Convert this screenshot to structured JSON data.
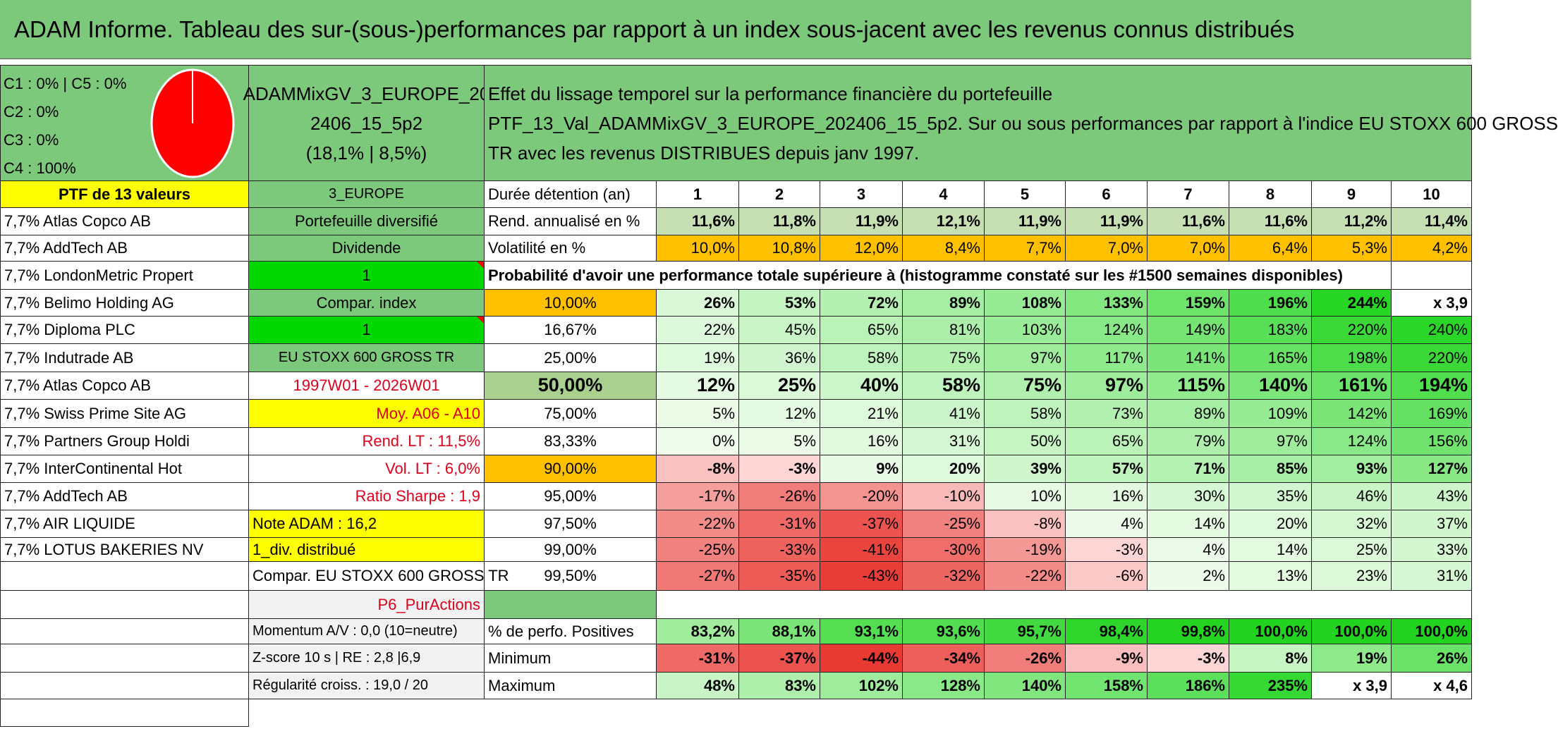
{
  "title": "ADAM Informe. Tableau des sur-(sous-)performances par rapport à un index sous-jacent avec les revenus connus distribués",
  "pie": {
    "lines": [
      "C1 : 0% | C5 : 0%",
      "C2 : 0%",
      "C3 : 0%",
      "C4 : 100%"
    ],
    "color": "#ff0000"
  },
  "portfolio": {
    "name_line1": "ADAMMixGV_3_EUROPE_20",
    "name_line2": "2406_15_5p2",
    "name_line3": "(18,1% | 8,5%)"
  },
  "effect": {
    "line1": "Effet du lissage temporel sur la performance financière du portefeuille",
    "line2": "PTF_13_Val_ADAMMixGV_3_EUROPE_202406_15_5p2. Sur ou sous performances par rapport à l'indice EU STOXX 600 GROSS",
    "line3": "TR avec les revenus DISTRIBUES depuis janv 1997."
  },
  "ptf_label": "PTF de 13 valeurs",
  "holdings": [
    "7,7% Atlas Copco AB",
    "7,7% AddTech AB",
    "7,7% LondonMetric Propert",
    "7,7% Belimo Holding AG",
    "7,7% Diploma PLC",
    "7,7% Indutrade AB",
    "7,7% Atlas Copco AB",
    "7,7% Swiss Prime Site AG",
    "7,7% Partners Group Holdi",
    "7,7% InterContinental Hot",
    "7,7% AddTech AB",
    "7,7% AIR LIQUIDE",
    "7,7% LOTUS BAKERIES NV"
  ],
  "info": {
    "region": "3_EUROPE",
    "diversified": "Portefeuille diversifié",
    "dividend": "Dividende",
    "dividend_value": "1",
    "compar_index": "Compar. index",
    "compar_value": "1",
    "index_name": "EU STOXX 600 GROSS TR",
    "period": "1997W01 - 2026W01",
    "moy": "Moy. A06 - A10",
    "rend_lt": "Rend. LT : 11,5%",
    "vol_lt": "Vol. LT : 6,0%",
    "sharpe": "Ratio Sharpe : 1,9",
    "note": "Note ADAM : 16,2",
    "div_distrib": "1_div. distribué",
    "compar_full": "Compar. EU STOXX 600 GROSS TR",
    "strategy": "P6_PurActions",
    "momentum": "Momentum A/V : 0,0 (10=neutre)",
    "zscore": "Z-score 10 s | RE : 2,8 |6,9",
    "regularite": "Régularité croiss. : 19,0 / 20"
  },
  "table": {
    "duration_label": "Durée détention (an)",
    "years": [
      "1",
      "2",
      "3",
      "4",
      "5",
      "6",
      "7",
      "8",
      "9",
      "10"
    ],
    "rend_label": "Rend. annualisé en %",
    "rend": [
      "11,6%",
      "11,8%",
      "11,9%",
      "12,1%",
      "11,9%",
      "11,9%",
      "11,6%",
      "11,6%",
      "11,2%",
      "11,4%"
    ],
    "vol_label": "Volatilité en %",
    "vol": [
      "10,0%",
      "10,8%",
      "12,0%",
      "8,4%",
      "7,7%",
      "7,0%",
      "7,0%",
      "6,4%",
      "5,3%",
      "4,2%"
    ],
    "prob_label": "Probabilité d'avoir une performance totale supérieure à (histogramme constaté sur les #1500 semaines disponibles)",
    "percentiles": [
      {
        "p": "10,00%",
        "vals": [
          "26%",
          "53%",
          "72%",
          "89%",
          "108%",
          "133%",
          "159%",
          "196%",
          "244%",
          "x 3,9"
        ]
      },
      {
        "p": "16,67%",
        "vals": [
          "22%",
          "45%",
          "65%",
          "81%",
          "103%",
          "124%",
          "149%",
          "183%",
          "220%",
          "240%"
        ]
      },
      {
        "p": "25,00%",
        "vals": [
          "19%",
          "36%",
          "58%",
          "75%",
          "97%",
          "117%",
          "141%",
          "165%",
          "198%",
          "220%"
        ]
      },
      {
        "p": "50,00%",
        "vals": [
          "12%",
          "25%",
          "40%",
          "58%",
          "75%",
          "97%",
          "115%",
          "140%",
          "161%",
          "194%"
        ]
      },
      {
        "p": "75,00%",
        "vals": [
          "5%",
          "12%",
          "21%",
          "41%",
          "58%",
          "73%",
          "89%",
          "109%",
          "142%",
          "169%"
        ]
      },
      {
        "p": "83,33%",
        "vals": [
          "0%",
          "5%",
          "16%",
          "31%",
          "50%",
          "65%",
          "79%",
          "97%",
          "124%",
          "156%"
        ]
      },
      {
        "p": "90,00%",
        "vals": [
          "-8%",
          "-3%",
          "9%",
          "20%",
          "39%",
          "57%",
          "71%",
          "85%",
          "93%",
          "127%"
        ]
      },
      {
        "p": "95,00%",
        "vals": [
          "-17%",
          "-26%",
          "-20%",
          "-10%",
          "10%",
          "16%",
          "30%",
          "35%",
          "46%",
          "43%"
        ]
      },
      {
        "p": "97,50%",
        "vals": [
          "-22%",
          "-31%",
          "-37%",
          "-25%",
          "-8%",
          "4%",
          "14%",
          "20%",
          "32%",
          "37%"
        ]
      },
      {
        "p": "99,00%",
        "vals": [
          "-25%",
          "-33%",
          "-41%",
          "-30%",
          "-19%",
          "-3%",
          "4%",
          "14%",
          "25%",
          "33%"
        ]
      },
      {
        "p": "99,50%",
        "vals": [
          "-27%",
          "-35%",
          "-43%",
          "-32%",
          "-22%",
          "-6%",
          "2%",
          "13%",
          "23%",
          "31%"
        ]
      }
    ],
    "pos_label": "% de perfo. Positives",
    "pos": [
      "83,2%",
      "88,1%",
      "93,1%",
      "93,6%",
      "95,7%",
      "98,4%",
      "99,8%",
      "100,0%",
      "100,0%",
      "100,0%"
    ],
    "min_label": "Minimum",
    "min": [
      "-31%",
      "-37%",
      "-44%",
      "-34%",
      "-26%",
      "-9%",
      "-3%",
      "8%",
      "19%",
      "26%"
    ],
    "max_label": "Maximum",
    "max": [
      "48%",
      "83%",
      "102%",
      "128%",
      "140%",
      "158%",
      "186%",
      "235%",
      "x 3,9",
      "x 4,6"
    ]
  },
  "colors": {
    "header_green": "#7dc97b",
    "yellow": "#ffff00",
    "orange": "#ffc000",
    "bright_green": "#00d800",
    "red_text": "#e0001b"
  }
}
